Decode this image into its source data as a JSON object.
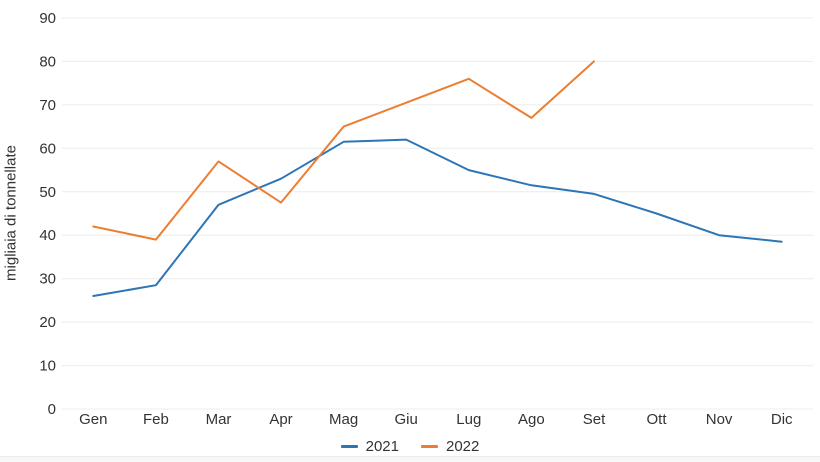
{
  "chart_data": {
    "type": "line",
    "title": "",
    "xlabel": "",
    "ylabel": "migliaia di tonnellate",
    "categories": [
      "Gen",
      "Feb",
      "Mar",
      "Apr",
      "Mag",
      "Giu",
      "Lug",
      "Ago",
      "Set",
      "Ott",
      "Nov",
      "Dic"
    ],
    "ylim": [
      0,
      90
    ],
    "ytick_step": 10,
    "grid": true,
    "legend_position": "bottom",
    "text_color": "#333333",
    "grid_color": "#ececec",
    "series": [
      {
        "name": "2021",
        "color": "#2E75B6",
        "values": [
          26,
          28.5,
          47,
          53,
          61.5,
          62,
          55,
          51.5,
          49.5,
          45,
          40,
          38.5
        ]
      },
      {
        "name": "2022",
        "color": "#ED7D31",
        "values": [
          42,
          39,
          57,
          47.5,
          65,
          70.5,
          76,
          67,
          80,
          null,
          null,
          null
        ]
      }
    ]
  }
}
